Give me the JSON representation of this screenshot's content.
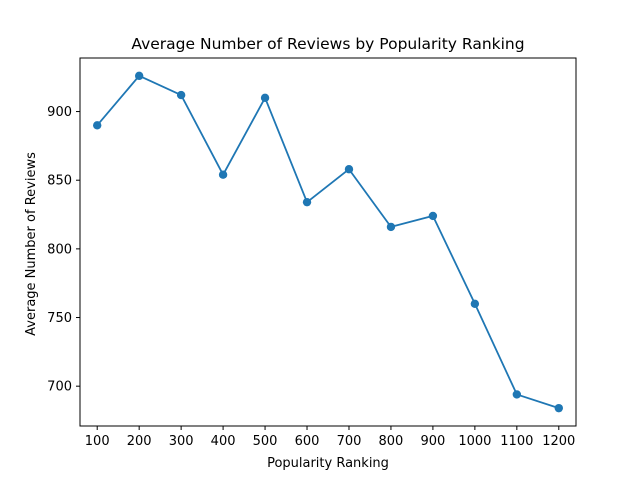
{
  "chart_data": {
    "type": "line",
    "title": "Average Number of Reviews by Popularity Ranking",
    "xlabel": "Popularity Ranking",
    "ylabel": "Average Number of Reviews",
    "x": [
      100,
      200,
      300,
      400,
      500,
      600,
      700,
      800,
      900,
      1000,
      1100,
      1200
    ],
    "series": [
      {
        "values": [
          890,
          926,
          912,
          854,
          910,
          834,
          858,
          816,
          824,
          760,
          694,
          684
        ],
        "color": "#1f77b4"
      }
    ],
    "xlim": [
      59,
      1241
    ],
    "ylim": [
      671,
      939
    ],
    "xticks": [
      "100",
      "200",
      "300",
      "400",
      "500",
      "600",
      "700",
      "800",
      "900",
      "1000",
      "1100",
      "1200"
    ],
    "yticks": [
      700,
      750,
      800,
      850,
      900
    ],
    "ytick_labels": [
      "700",
      "750",
      "800",
      "850",
      "900"
    ],
    "grid": false,
    "legend": "none",
    "markers": "circle"
  }
}
